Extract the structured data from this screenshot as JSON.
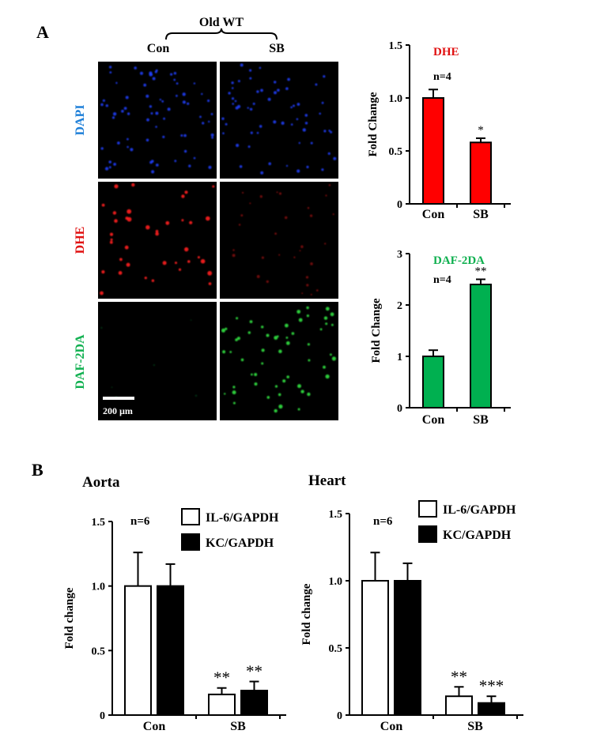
{
  "panel_a": {
    "letter": "A",
    "group_label": "Old WT",
    "columns": [
      "Con",
      "SB"
    ],
    "rows": [
      {
        "label": "DAPI",
        "color": "#1e7fd8"
      },
      {
        "label": "DHE",
        "color": "#e01010"
      },
      {
        "label": "DAF-2DA",
        "color": "#10b050"
      }
    ],
    "scale_bar_label": "200 µm"
  },
  "panel_b": {
    "letter": "B"
  },
  "chart_data": [
    {
      "id": "dhe",
      "type": "bar",
      "title": "DHE",
      "title_color": "#e01010",
      "annotation": "n=4",
      "ylabel": "Fold Change",
      "xlabel": "",
      "categories": [
        "Con",
        "SB"
      ],
      "values": [
        1.0,
        0.58
      ],
      "errors": [
        0.08,
        0.04
      ],
      "significance": [
        "",
        "*"
      ],
      "bar_color": "#ff0000",
      "ylim": [
        0,
        1.5
      ],
      "yticks": [
        0,
        0.5,
        1.0,
        1.5
      ],
      "ytick_labels": [
        "0",
        "0.5",
        "1.0",
        "1.5"
      ]
    },
    {
      "id": "daf",
      "type": "bar",
      "title": "DAF-2DA",
      "title_color": "#10b050",
      "annotation": "n=4",
      "ylabel": "Fold Change",
      "xlabel": "",
      "categories": [
        "Con",
        "SB"
      ],
      "values": [
        1.0,
        2.4
      ],
      "errors": [
        0.12,
        0.1
      ],
      "significance": [
        "",
        "**"
      ],
      "bar_color": "#00b050",
      "ylim": [
        0,
        3
      ],
      "yticks": [
        0,
        1,
        2,
        3
      ],
      "ytick_labels": [
        "0",
        "1",
        "2",
        "3"
      ]
    },
    {
      "id": "aorta",
      "type": "bar",
      "title": "Aorta",
      "annotation": "n=6",
      "ylabel": "Fold change",
      "xlabel": "",
      "categories": [
        "Con",
        "SB"
      ],
      "series": [
        {
          "name": "IL-6/GAPDH",
          "values": [
            1.0,
            0.16
          ],
          "errors": [
            0.26,
            0.05
          ],
          "significance": [
            "",
            "**"
          ],
          "color": "#ffffff"
        },
        {
          "name": "KC/GAPDH",
          "values": [
            1.0,
            0.19
          ],
          "errors": [
            0.17,
            0.07
          ],
          "significance": [
            "",
            "**"
          ],
          "color": "#000000"
        }
      ],
      "ylim": [
        0,
        1.5
      ],
      "yticks": [
        0,
        0.5,
        1.0,
        1.5
      ],
      "ytick_labels": [
        "0",
        "0.5",
        "1.0",
        "1.5"
      ],
      "legend": "top-right"
    },
    {
      "id": "heart",
      "type": "bar",
      "title": "Heart",
      "annotation": "n=6",
      "ylabel": "Fold change",
      "xlabel": "",
      "categories": [
        "Con",
        "SB"
      ],
      "series": [
        {
          "name": "IL-6/GAPDH",
          "values": [
            1.0,
            0.14
          ],
          "errors": [
            0.21,
            0.07
          ],
          "significance": [
            "",
            "**"
          ],
          "color": "#ffffff"
        },
        {
          "name": "KC/GAPDH",
          "values": [
            1.0,
            0.09
          ],
          "errors": [
            0.13,
            0.05
          ],
          "significance": [
            "",
            "***"
          ],
          "color": "#000000"
        }
      ],
      "ylim": [
        0,
        1.5
      ],
      "yticks": [
        0,
        0.5,
        1.0,
        1.5
      ],
      "ytick_labels": [
        "0",
        "0.5",
        "1.0",
        "1.5"
      ],
      "legend": "top-right"
    }
  ]
}
